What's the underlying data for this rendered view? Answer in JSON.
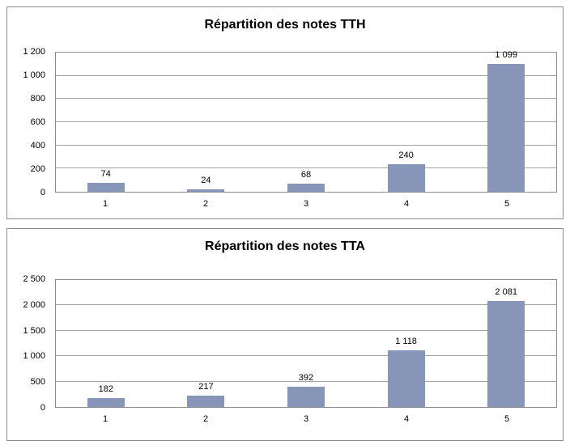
{
  "page": {
    "background_color": "#ffffff",
    "panel_border_color": "#8c8c8c"
  },
  "chart_data": [
    {
      "type": "bar",
      "title": "Répartition des notes TTH",
      "categories": [
        "1",
        "2",
        "3",
        "4",
        "5"
      ],
      "values": [
        74,
        24,
        68,
        240,
        1099
      ],
      "value_labels": [
        "74",
        "24",
        "68",
        "240",
        "1 099"
      ],
      "xlabel": "",
      "ylabel": "",
      "ylim": [
        0,
        1200
      ],
      "ytick_step": 200,
      "yticks": [
        {
          "value": 0,
          "label": "0"
        },
        {
          "value": 200,
          "label": "200"
        },
        {
          "value": 400,
          "label": "400"
        },
        {
          "value": 600,
          "label": "600"
        },
        {
          "value": 800,
          "label": "800"
        },
        {
          "value": 1000,
          "label": "1 000"
        },
        {
          "value": 1200,
          "label": "1 200"
        }
      ],
      "grid": true,
      "legend": "none",
      "bar_color": "#8796b8",
      "gridline_color": "#a3a3a3"
    },
    {
      "type": "bar",
      "title": "Répartition des notes TTA",
      "categories": [
        "1",
        "2",
        "3",
        "4",
        "5"
      ],
      "values": [
        182,
        217,
        392,
        1118,
        2081
      ],
      "value_labels": [
        "182",
        "217",
        "392",
        "1 118",
        "2 081"
      ],
      "xlabel": "",
      "ylabel": "",
      "ylim": [
        0,
        2500
      ],
      "ytick_step": 500,
      "yticks": [
        {
          "value": 0,
          "label": "0"
        },
        {
          "value": 500,
          "label": "500"
        },
        {
          "value": 1000,
          "label": "1 000"
        },
        {
          "value": 1500,
          "label": "1 500"
        },
        {
          "value": 2000,
          "label": "2 000"
        },
        {
          "value": 2500,
          "label": "2 500"
        }
      ],
      "grid": true,
      "legend": "none",
      "bar_color": "#8796b8",
      "gridline_color": "#a3a3a3"
    }
  ]
}
